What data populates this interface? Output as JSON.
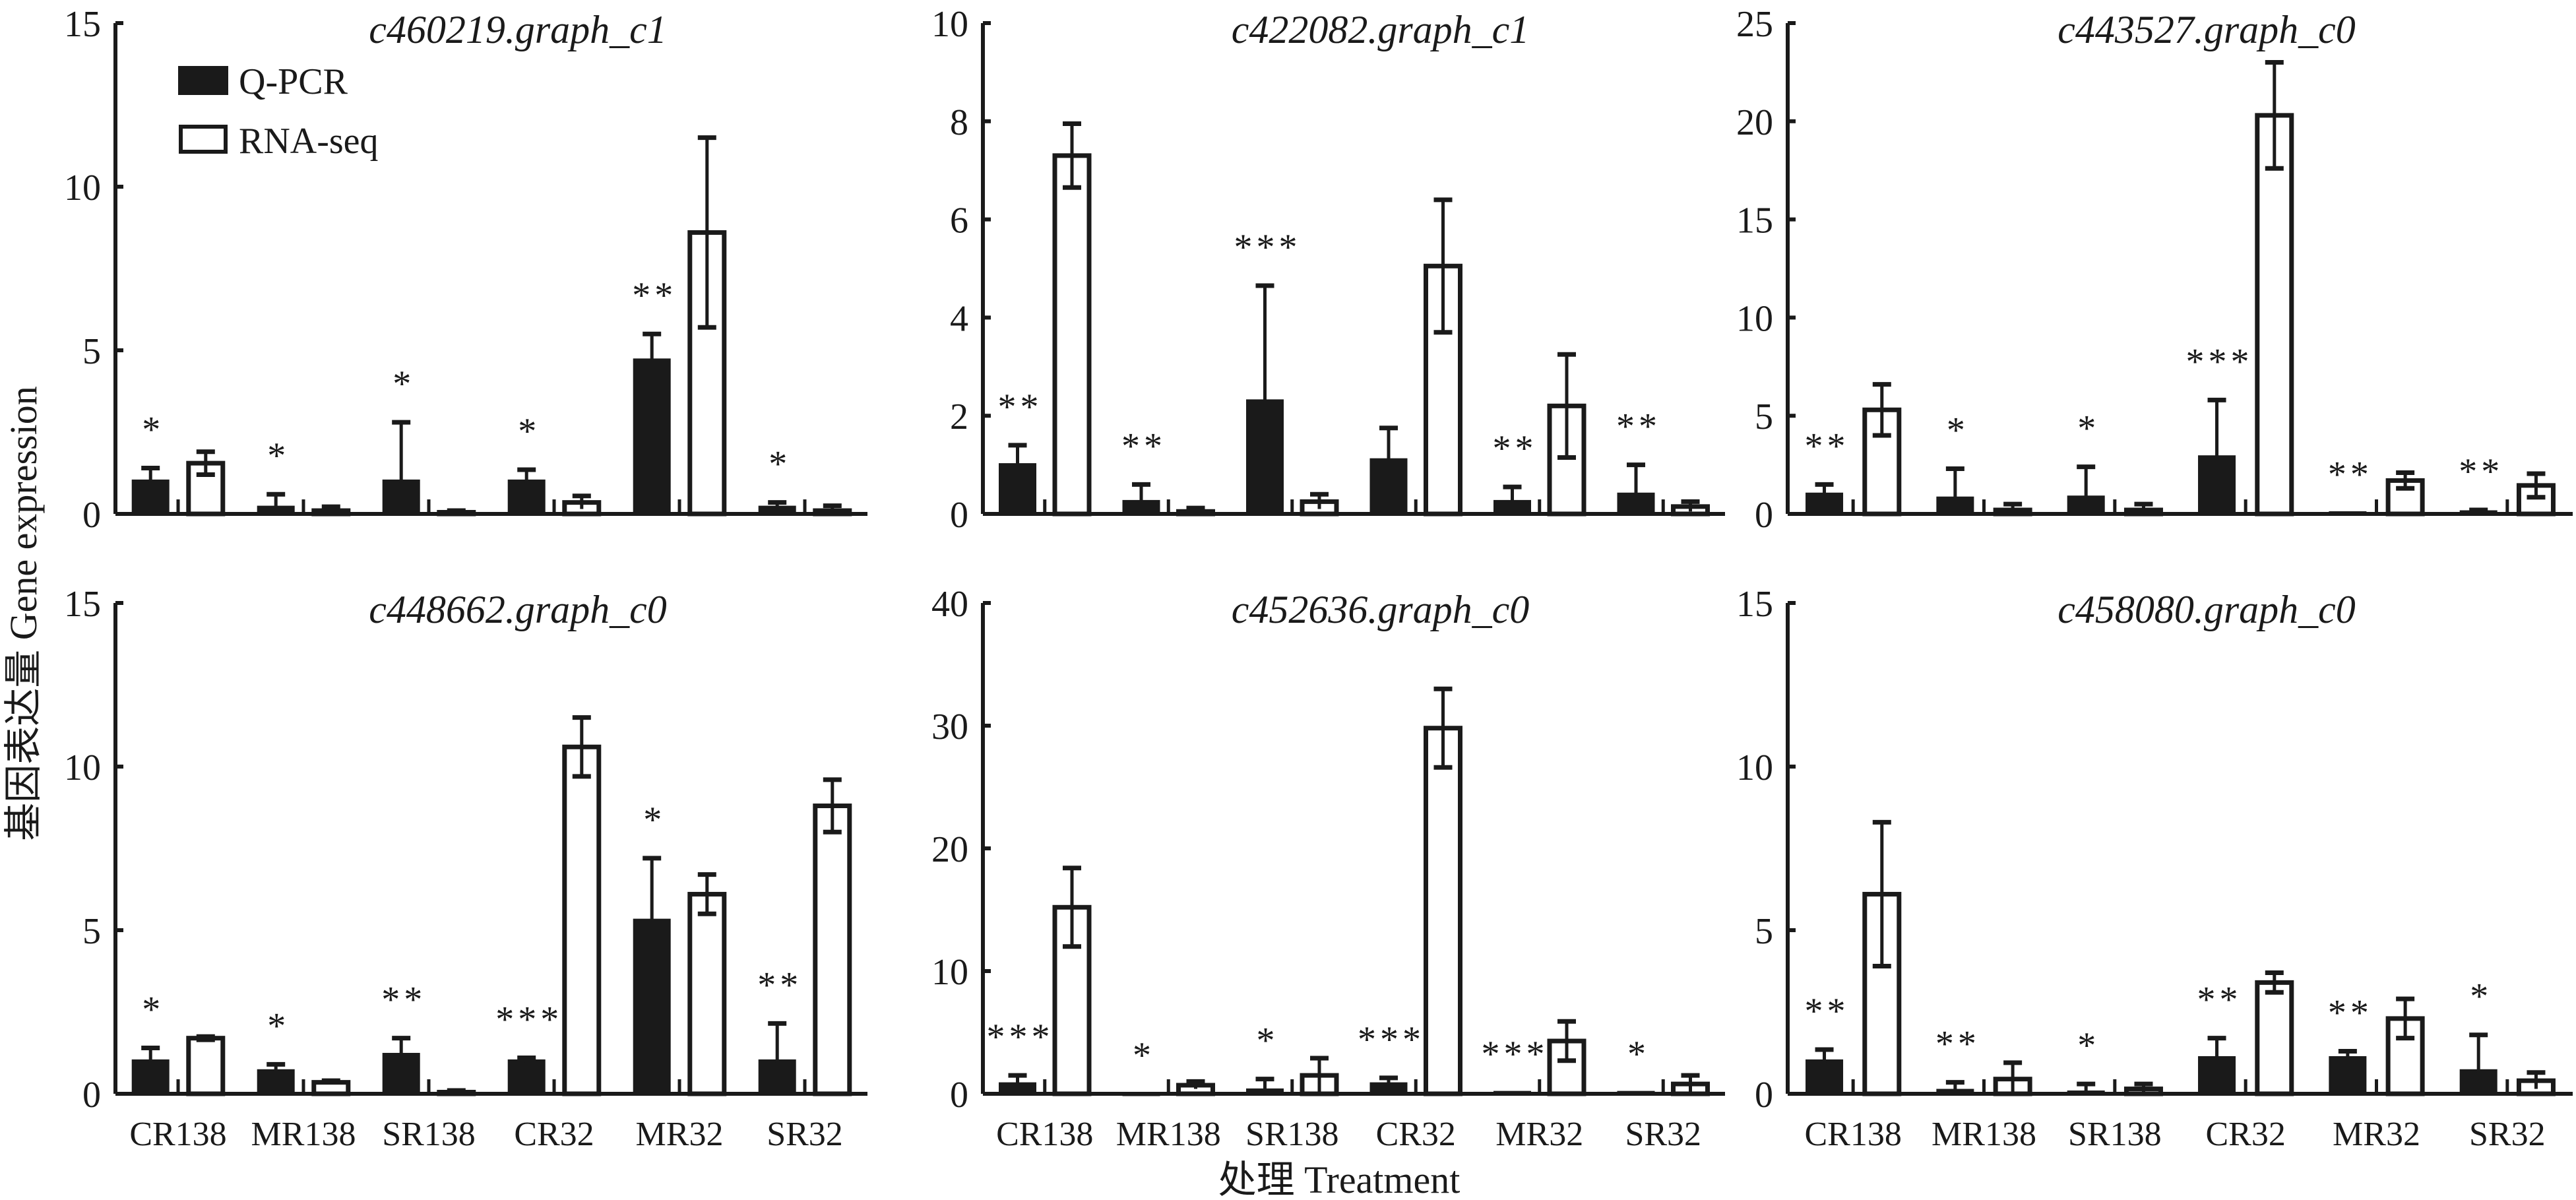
{
  "chart_data": {
    "type": "bar",
    "ylabel": "基因表达量 Gene expression",
    "xlabel": "处理 Treatment",
    "categories": [
      "CR138",
      "MR138",
      "SR138",
      "CR32",
      "MR32",
      "SR32"
    ],
    "legend": {
      "placement": "top-left of first panel",
      "entries": [
        "Q-PCR",
        "RNA-seq"
      ]
    },
    "colors": {
      "qpcr": "#1a1a1a",
      "rnaseq": "#ffffff",
      "stroke": "#1a1a1a"
    },
    "panels": [
      {
        "title": "c460219.graph_c1",
        "ylim": [
          0,
          15
        ],
        "yticks": [
          0,
          5,
          10,
          15
        ],
        "series": [
          {
            "name": "Q-PCR",
            "values": [
              1.0,
              0.2,
              1.0,
              1.0,
              4.7,
              0.2
            ],
            "errors": [
              0.4,
              0.4,
              1.8,
              0.35,
              0.8,
              0.15
            ]
          },
          {
            "name": "RNA-seq",
            "values": [
              1.55,
              0.1,
              0.05,
              0.35,
              8.6,
              0.1
            ],
            "errors": [
              0.35,
              0.12,
              0.05,
              0.2,
              2.9,
              0.15
            ]
          }
        ],
        "significance": [
          "*",
          "*",
          "*",
          "*",
          "**",
          "*"
        ]
      },
      {
        "title": "c422082.graph_c1",
        "ylim": [
          0,
          10
        ],
        "yticks": [
          0,
          2,
          4,
          6,
          8,
          10
        ],
        "series": [
          {
            "name": "Q-PCR",
            "values": [
              1.0,
              0.25,
              2.3,
              1.1,
              0.25,
              0.4
            ],
            "errors": [
              0.4,
              0.35,
              2.35,
              0.65,
              0.3,
              0.6
            ]
          },
          {
            "name": "RNA-seq",
            "values": [
              7.3,
              0.05,
              0.25,
              5.05,
              2.2,
              0.15
            ],
            "errors": [
              0.65,
              0.07,
              0.15,
              1.35,
              1.05,
              0.1
            ]
          }
        ],
        "significance": [
          "**",
          "**",
          "***",
          "",
          "**",
          "**"
        ]
      },
      {
        "title": "c443527.graph_c0",
        "ylim": [
          0,
          25
        ],
        "yticks": [
          0,
          5,
          10,
          15,
          20,
          25
        ],
        "series": [
          {
            "name": "Q-PCR",
            "values": [
              1.0,
              0.8,
              0.85,
              2.9,
              0.05,
              0.1
            ],
            "errors": [
              0.5,
              1.5,
              1.55,
              2.9,
              0.0,
              0.1
            ]
          },
          {
            "name": "RNA-seq",
            "values": [
              5.3,
              0.2,
              0.2,
              20.3,
              1.7,
              1.45
            ],
            "errors": [
              1.3,
              0.3,
              0.3,
              2.7,
              0.4,
              0.6
            ]
          }
        ],
        "significance": [
          "**",
          "*",
          "*",
          "***",
          "**",
          "**"
        ]
      },
      {
        "title": "c448662.graph_c0",
        "ylim": [
          0,
          15
        ],
        "yticks": [
          0,
          5,
          10,
          15
        ],
        "series": [
          {
            "name": "Q-PCR",
            "values": [
              1.0,
              0.7,
              1.2,
              1.0,
              5.3,
              1.0
            ],
            "errors": [
              0.4,
              0.2,
              0.5,
              0.1,
              1.9,
              1.15
            ]
          },
          {
            "name": "RNA-seq",
            "values": [
              1.7,
              0.35,
              0.05,
              10.6,
              6.1,
              8.8
            ],
            "errors": [
              0.05,
              0.05,
              0.05,
              0.9,
              0.6,
              0.8
            ]
          }
        ],
        "significance": [
          "*",
          "*",
          "**",
          "***",
          "*",
          "**"
        ]
      },
      {
        "title": "c452636.graph_c0",
        "ylim": [
          0,
          40
        ],
        "yticks": [
          0,
          10,
          20,
          30,
          40
        ],
        "series": [
          {
            "name": "Q-PCR",
            "values": [
              0.8,
              0.0,
              0.3,
              0.8,
              0.1,
              0.1
            ],
            "errors": [
              0.7,
              0.0,
              0.9,
              0.5,
              0.0,
              0.0
            ]
          },
          {
            "name": "RNA-seq",
            "values": [
              15.2,
              0.7,
              1.5,
              29.8,
              4.3,
              0.8
            ],
            "errors": [
              3.2,
              0.3,
              1.4,
              3.2,
              1.6,
              0.7
            ]
          }
        ],
        "significance": [
          "***",
          "*",
          "*",
          "***",
          "***",
          "*"
        ]
      },
      {
        "title": "c458080.graph_c0",
        "ylim": [
          0,
          15
        ],
        "yticks": [
          0,
          5,
          10,
          15
        ],
        "series": [
          {
            "name": "Q-PCR",
            "values": [
              1.0,
              0.1,
              0.05,
              1.1,
              1.1,
              0.7
            ],
            "errors": [
              0.35,
              0.25,
              0.25,
              0.6,
              0.2,
              1.1
            ]
          },
          {
            "name": "RNA-seq",
            "values": [
              6.1,
              0.45,
              0.15,
              3.4,
              2.3,
              0.4
            ],
            "errors": [
              2.2,
              0.5,
              0.15,
              0.3,
              0.6,
              0.25
            ]
          }
        ],
        "significance": [
          "**",
          "**",
          "*",
          "**",
          "**",
          "*"
        ]
      }
    ]
  }
}
